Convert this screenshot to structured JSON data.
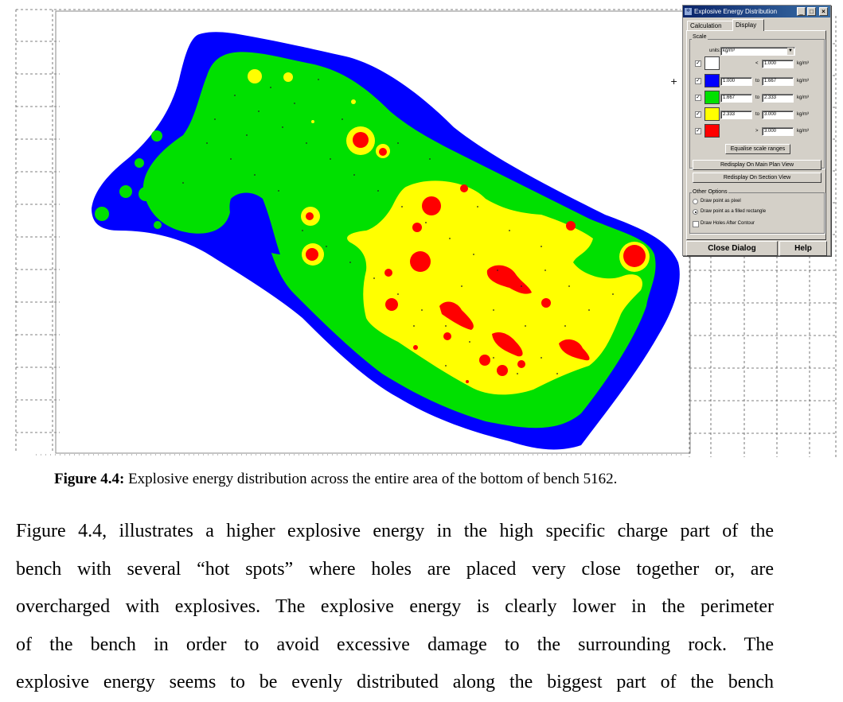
{
  "dialog": {
    "title": "Explosive Energy Distribution",
    "tabs": [
      {
        "label": "Calculation"
      },
      {
        "label": "Display"
      }
    ],
    "scale": {
      "label": "Scale",
      "units_label": "units:",
      "units_value": "kg/m³",
      "rows": [
        {
          "checked": true,
          "color": "#ffffff",
          "low": "",
          "sep": "<",
          "high": "1.000",
          "unit": "kg/m³"
        },
        {
          "checked": true,
          "color": "#0000ff",
          "low": "1.000",
          "sep": "to",
          "high": "1.667",
          "unit": "kg/m³"
        },
        {
          "checked": true,
          "color": "#00e000",
          "low": "1.667",
          "sep": "to",
          "high": "2.333",
          "unit": "kg/m³"
        },
        {
          "checked": true,
          "color": "#ffff00",
          "low": "2.333",
          "sep": "to",
          "high": "3.000",
          "unit": "kg/m³"
        },
        {
          "checked": true,
          "color": "#ff0000",
          "low": "",
          "sep": ">",
          "high": "3.000",
          "unit": "kg/m³"
        }
      ],
      "equalise_label": "Equalise scale ranges"
    },
    "redisplay_plan_label": "Redisplay On Main Plan View",
    "redisplay_section_label": "Redisplay On Section View",
    "other_options": {
      "label": "Other Options",
      "radio_pixel": "Draw point as pixel",
      "radio_rect": "Draw point as a filled rectangle",
      "checkbox_holes": "Draw Holes After Contour"
    },
    "close_label": "Close Dialog",
    "help_label": "Help"
  },
  "caption": {
    "label": "Figure 4.4:",
    "text": " Explosive energy distribution across the entire area of the bottom of bench 5162."
  },
  "body": {
    "lines": [
      "Figure 4.4, illustrates a higher explosive energy in the high specific charge part of the",
      "bench with several “hot spots” where holes are placed very close together or, are",
      "overcharged with explosives. The explosive energy is clearly lower in the perimeter",
      "of the bench in order to avoid excessive damage to the surrounding rock. The",
      "explosive energy seems to be evenly distributed along the biggest part of the bench"
    ]
  },
  "colors": {
    "blue": "#0000ff",
    "green": "#00e000",
    "yellow": "#ffff00",
    "red": "#ff0000"
  }
}
